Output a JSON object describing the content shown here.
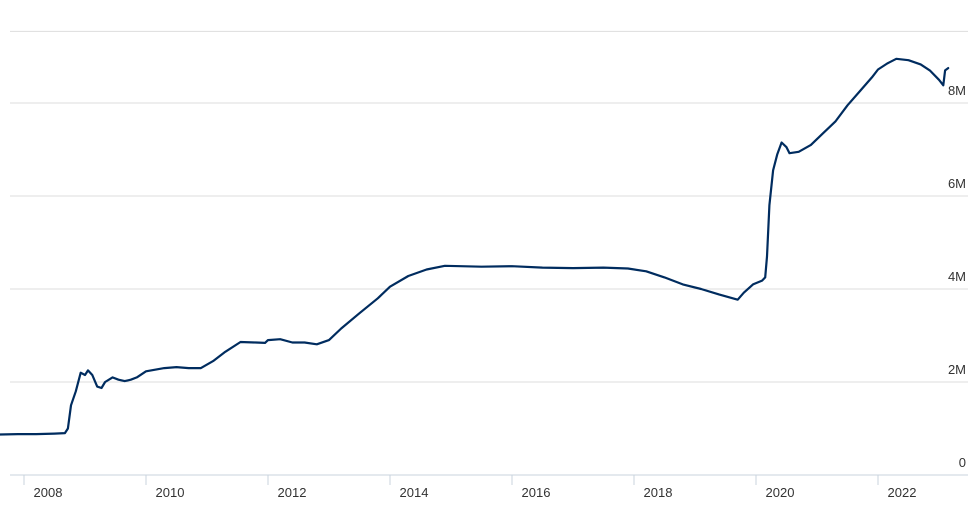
{
  "chart_data": {
    "type": "line",
    "title": "",
    "xlabel": "",
    "ylabel": "",
    "x_tick_labels": [
      "2008",
      "2010",
      "2012",
      "2014",
      "2016",
      "2018",
      "2020",
      "2022"
    ],
    "x_tick_values": [
      2008,
      2010,
      2012,
      2014,
      2016,
      2018,
      2020,
      2022
    ],
    "y_tick_labels": [
      "0",
      "2M",
      "4M",
      "6M",
      "8M"
    ],
    "y_tick_values": [
      0,
      2000000,
      4000000,
      6000000,
      8000000
    ],
    "xlim": [
      2007.6,
      2023.15
    ],
    "ylim": [
      0,
      9800000
    ],
    "grid": "horizontal",
    "colors": {
      "series": "#002c5f",
      "grid": "#dddddd",
      "axis": "#c9d3dd",
      "text": "#333333"
    },
    "series": [
      {
        "values": [
          [
            2007.6,
            870000
          ],
          [
            2007.9,
            880000
          ],
          [
            2008.2,
            880000
          ],
          [
            2008.5,
            890000
          ],
          [
            2008.67,
            900000
          ],
          [
            2008.72,
            1000000
          ],
          [
            2008.77,
            1500000
          ],
          [
            2008.85,
            1800000
          ],
          [
            2008.93,
            2200000
          ],
          [
            2009.0,
            2150000
          ],
          [
            2009.05,
            2250000
          ],
          [
            2009.12,
            2150000
          ],
          [
            2009.2,
            1900000
          ],
          [
            2009.27,
            1870000
          ],
          [
            2009.33,
            2000000
          ],
          [
            2009.45,
            2100000
          ],
          [
            2009.55,
            2050000
          ],
          [
            2009.65,
            2020000
          ],
          [
            2009.75,
            2050000
          ],
          [
            2009.85,
            2100000
          ],
          [
            2010.0,
            2230000
          ],
          [
            2010.3,
            2300000
          ],
          [
            2010.5,
            2320000
          ],
          [
            2010.7,
            2300000
          ],
          [
            2010.9,
            2300000
          ],
          [
            2011.1,
            2450000
          ],
          [
            2011.3,
            2650000
          ],
          [
            2011.55,
            2860000
          ],
          [
            2011.8,
            2850000
          ],
          [
            2011.95,
            2840000
          ],
          [
            2012.0,
            2900000
          ],
          [
            2012.2,
            2920000
          ],
          [
            2012.4,
            2850000
          ],
          [
            2012.6,
            2850000
          ],
          [
            2012.8,
            2810000
          ],
          [
            2013.0,
            2900000
          ],
          [
            2013.2,
            3150000
          ],
          [
            2013.5,
            3480000
          ],
          [
            2013.8,
            3800000
          ],
          [
            2014.0,
            4050000
          ],
          [
            2014.3,
            4280000
          ],
          [
            2014.6,
            4420000
          ],
          [
            2014.9,
            4500000
          ],
          [
            2015.5,
            4480000
          ],
          [
            2016.0,
            4490000
          ],
          [
            2016.5,
            4460000
          ],
          [
            2017.0,
            4450000
          ],
          [
            2017.5,
            4460000
          ],
          [
            2017.9,
            4440000
          ],
          [
            2018.2,
            4380000
          ],
          [
            2018.5,
            4250000
          ],
          [
            2018.8,
            4100000
          ],
          [
            2019.1,
            4000000
          ],
          [
            2019.4,
            3880000
          ],
          [
            2019.7,
            3770000
          ],
          [
            2019.8,
            3920000
          ],
          [
            2019.95,
            4100000
          ],
          [
            2020.1,
            4180000
          ],
          [
            2020.15,
            4250000
          ],
          [
            2020.18,
            4700000
          ],
          [
            2020.22,
            5800000
          ],
          [
            2020.28,
            6550000
          ],
          [
            2020.35,
            6900000
          ],
          [
            2020.42,
            7150000
          ],
          [
            2020.5,
            7050000
          ],
          [
            2020.55,
            6920000
          ],
          [
            2020.7,
            6950000
          ],
          [
            2020.9,
            7100000
          ],
          [
            2021.1,
            7350000
          ],
          [
            2021.3,
            7600000
          ],
          [
            2021.5,
            7950000
          ],
          [
            2021.7,
            8250000
          ],
          [
            2021.9,
            8550000
          ],
          [
            2022.0,
            8720000
          ],
          [
            2022.15,
            8850000
          ],
          [
            2022.3,
            8950000
          ],
          [
            2022.5,
            8920000
          ],
          [
            2022.7,
            8830000
          ],
          [
            2022.85,
            8700000
          ],
          [
            2023.0,
            8500000
          ],
          [
            2023.07,
            8380000
          ],
          [
            2023.1,
            8700000
          ],
          [
            2023.15,
            8750000
          ]
        ]
      }
    ]
  }
}
